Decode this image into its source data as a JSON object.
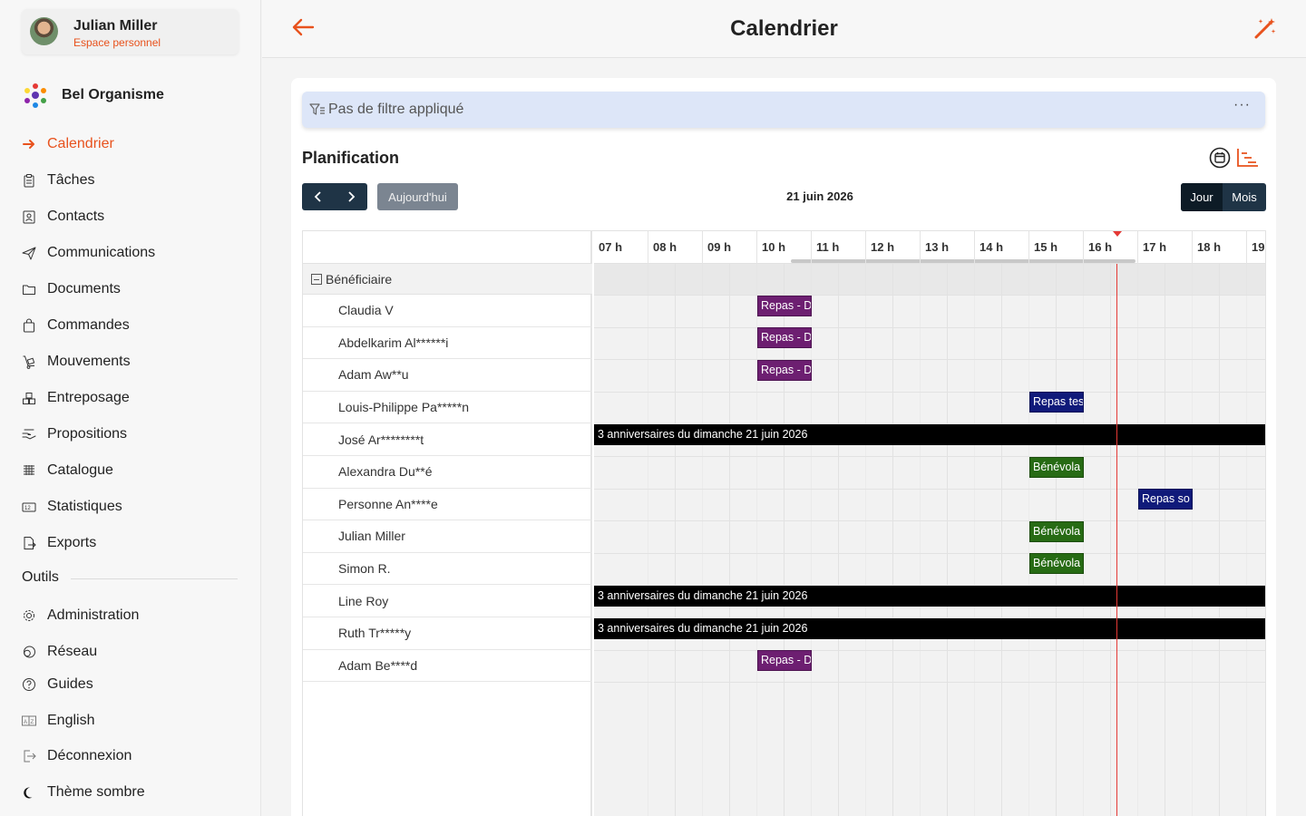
{
  "user": {
    "name": "Julian Miller",
    "subtitle": "Espace personnel"
  },
  "org": {
    "name": "Bel Organisme"
  },
  "nav": [
    {
      "label": "Calendrier",
      "icon": "arrow-right-icon",
      "active": true
    },
    {
      "label": "Tâches",
      "icon": "clipboard-icon"
    },
    {
      "label": "Contacts",
      "icon": "contact-card-icon"
    },
    {
      "label": "Communications",
      "icon": "paper-plane-icon"
    },
    {
      "label": "Documents",
      "icon": "folder-icon"
    },
    {
      "label": "Commandes",
      "icon": "shopping-bag-icon"
    },
    {
      "label": "Mouvements",
      "icon": "dolly-icon"
    },
    {
      "label": "Entreposage",
      "icon": "warehouse-boxes-icon"
    },
    {
      "label": "Propositions",
      "icon": "offer-hand-icon"
    },
    {
      "label": "Catalogue",
      "icon": "grid-catalog-icon"
    },
    {
      "label": "Statistiques",
      "icon": "numbers-icon"
    },
    {
      "label": "Exports",
      "icon": "file-export-icon"
    }
  ],
  "tools_section": "Outils",
  "tools": [
    {
      "label": "Administration",
      "icon": "gear-icon"
    },
    {
      "label": "Réseau",
      "icon": "network-circles-icon"
    },
    {
      "label": "Guides",
      "icon": "help-circle-icon"
    },
    {
      "label": "English",
      "icon": "language-icon"
    },
    {
      "label": "Déconnexion",
      "icon": "logout-icon"
    },
    {
      "label": "Thème sombre",
      "icon": "moon-icon"
    }
  ],
  "header": {
    "title": "Calendrier"
  },
  "filter": {
    "text": "Pas de filtre appliqué",
    "more": "···"
  },
  "planning": {
    "title": "Planification",
    "today_label": "Aujourd'hui",
    "date_label": "21 juin 2026",
    "view_day": "Jour",
    "view_month": "Mois"
  },
  "scheduler": {
    "hours": [
      "07 h",
      "08 h",
      "09 h",
      "10 h",
      "11 h",
      "12 h",
      "13 h",
      "14 h",
      "15 h",
      "16 h",
      "17 h",
      "18 h",
      "19"
    ],
    "group_label": "Bénéficiaire",
    "resources": [
      "Claudia V",
      "Abdelkarim Al******i",
      "Adam Aw**u",
      "Louis-Philippe Pa*****n",
      "José Ar********t",
      "Alexandra Du**é",
      "Personne An****e",
      "Julian Miller",
      "Simon R.",
      "Line Roy",
      "Ruth Tr*****y",
      "Adam Be****d"
    ],
    "events": [
      {
        "row": 0,
        "start": 10,
        "end": 11,
        "label": "Repas - D",
        "color": "purple"
      },
      {
        "row": 1,
        "start": 10,
        "end": 11,
        "label": "Repas - D",
        "color": "purple"
      },
      {
        "row": 2,
        "start": 10,
        "end": 11,
        "label": "Repas - D",
        "color": "purple"
      },
      {
        "row": 3,
        "start": 15,
        "end": 16,
        "label": "Repas tes",
        "color": "navy"
      },
      {
        "row": 4,
        "start": 7,
        "end": 19.4,
        "label": "3 anniversaires du dimanche 21 juin 2026",
        "color": "black"
      },
      {
        "row": 5,
        "start": 15,
        "end": 16,
        "label": "Bénévola",
        "color": "green"
      },
      {
        "row": 6,
        "start": 17,
        "end": 18,
        "label": "Repas so",
        "color": "navy"
      },
      {
        "row": 7,
        "start": 15,
        "end": 16,
        "label": "Bénévola",
        "color": "green"
      },
      {
        "row": 8,
        "start": 15,
        "end": 16,
        "label": "Bénévola",
        "color": "green"
      },
      {
        "row": 9,
        "start": 7,
        "end": 19.4,
        "label": "3 anniversaires du dimanche 21 juin 2026",
        "color": "black"
      },
      {
        "row": 10,
        "start": 7,
        "end": 19.4,
        "label": "3 anniversaires du dimanche 21 juin 2026",
        "color": "black"
      },
      {
        "row": 11,
        "start": 10,
        "end": 11,
        "label": "Repas - D",
        "color": "purple"
      }
    ],
    "now_hour": 16.6,
    "start_hour": 7
  },
  "colors": {
    "accent": "#e8521d",
    "nav_dark": "#1f3446",
    "event_purple": "#6d1f71",
    "event_navy": "#101a7a",
    "event_green": "#276b14",
    "event_black": "#000000",
    "now_line": "#e53935"
  }
}
